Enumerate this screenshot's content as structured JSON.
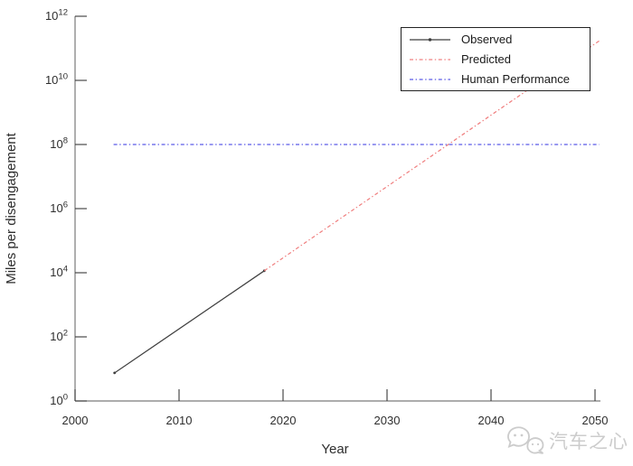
{
  "watermark": {
    "text": "汽车之心",
    "icon": "wechat-bubbles-icon",
    "color": "#cccccc"
  },
  "chart_data": {
    "type": "line",
    "title": "",
    "xlabel": "Year",
    "ylabel": "Miles per disengagement",
    "grid": false,
    "x_axis": {
      "min": 2000,
      "max": 2050,
      "ticks": [
        2000,
        2010,
        2020,
        2030,
        2040,
        2050
      ]
    },
    "y_axis": {
      "scale": "log",
      "base_label": "10",
      "min_exp": 0,
      "max_exp": 12,
      "tick_exponents": [
        0,
        2,
        4,
        6,
        8,
        10,
        12
      ]
    },
    "legend": {
      "position": "top-right",
      "entries": [
        "Observed",
        "Predicted",
        "Human Performance"
      ]
    },
    "series": [
      {
        "name": "Observed",
        "color": "#3f3f3f",
        "line_style": "solid",
        "marker": "dot",
        "points": [
          [
            2003.8,
            7.5
          ],
          [
            2018.2,
            11500
          ]
        ]
      },
      {
        "name": "Predicted",
        "color": "#f08080",
        "line_style": "dash-dot",
        "marker": "none",
        "points": [
          [
            2018.2,
            11500
          ],
          [
            2050.4,
            170000000000
          ]
        ]
      },
      {
        "name": "Human Performance",
        "color": "#5b5be6",
        "line_style": "dash-dot",
        "marker": "none",
        "points": [
          [
            2003.7,
            100000000
          ],
          [
            2050.4,
            100000000
          ]
        ]
      }
    ]
  }
}
